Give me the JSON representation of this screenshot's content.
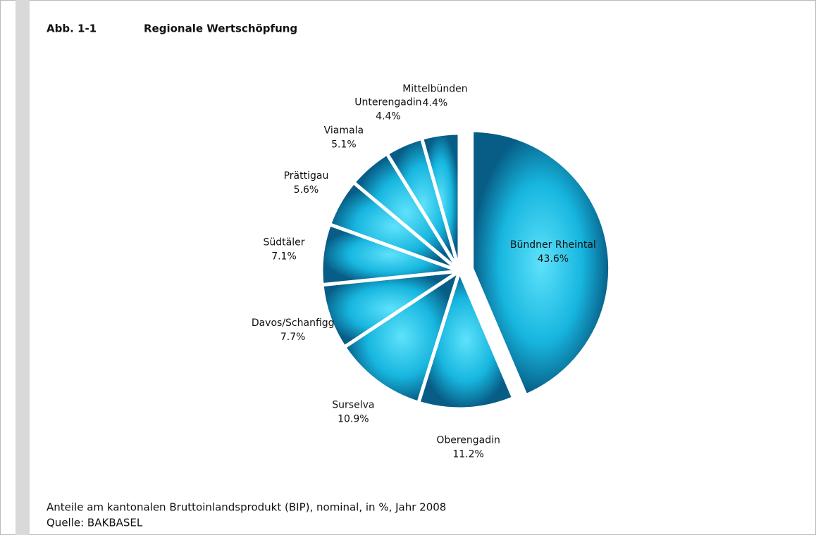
{
  "chart_data": {
    "type": "pie",
    "figure_label": "Abb. 1-1",
    "title": "Regionale Wertschöpfung",
    "categories": [
      "Bündner Rheintal",
      "Oberengadin",
      "Surselva",
      "Davos/Schanfigg",
      "Südtäler",
      "Prättigau",
      "Viamala",
      "Unterengadin",
      "Mittelbünden"
    ],
    "values": [
      43.6,
      11.2,
      10.9,
      7.7,
      7.1,
      5.6,
      5.1,
      4.4,
      4.4
    ],
    "value_labels": [
      "43.6%",
      "11.2%",
      "10.9%",
      "7.7%",
      "7.1%",
      "5.6%",
      "5.1%",
      "4.4%",
      "4.4%"
    ],
    "color": "#1ab8e0",
    "caption": "Anteile am kantonalen Bruttoinlandsprodukt (BIP), nominal, in %, Jahr 2008",
    "source": "Quelle: BAKBASEL"
  }
}
